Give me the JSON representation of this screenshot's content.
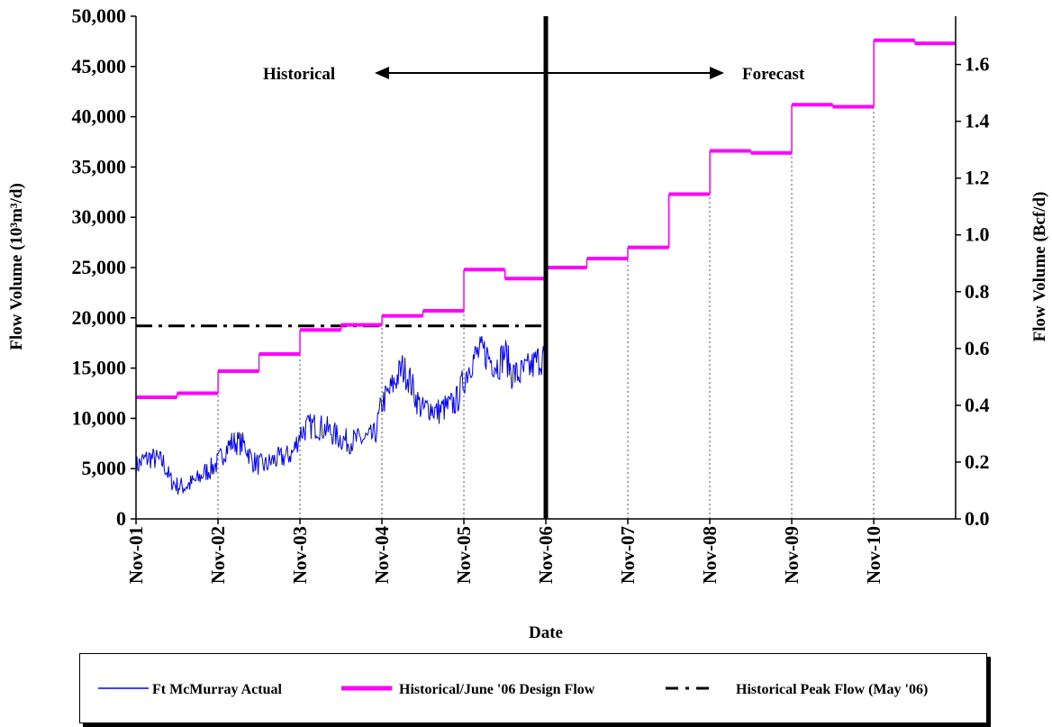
{
  "chart_data": {
    "type": "line",
    "xlabel": "Date",
    "ylabel_left": "Flow Volume (10³m³/d)",
    "ylabel_right": "Flow Volume (Bcf/d)",
    "y_left_range": [
      0,
      50000
    ],
    "y_left_ticks": [
      "0",
      "5,000",
      "10,000",
      "15,000",
      "20,000",
      "25,000",
      "30,000",
      "35,000",
      "40,000",
      "45,000",
      "50,000"
    ],
    "y_right_range": [
      0.0,
      1.77
    ],
    "y_right_ticks": [
      "0.0",
      "0.2",
      "0.4",
      "0.6",
      "0.8",
      "1.0",
      "1.2",
      "1.4",
      "1.6"
    ],
    "x_range_years": [
      2001.833,
      2011.833
    ],
    "x_tick_labels": [
      "Nov-01",
      "Nov-02",
      "Nov-03",
      "Nov-04",
      "Nov-05",
      "Nov-06",
      "Nov-07",
      "Nov-08",
      "Nov-09",
      "Nov-10"
    ],
    "annotations": {
      "historical": "Historical",
      "forecast": "Forecast",
      "divider_date": "Nov-06"
    },
    "legend_labels": {
      "actual": "Ft McMurray Actual",
      "design": "Historical/June '06 Design Flow",
      "peak": "Historical Peak Flow (May '06)"
    },
    "colors": {
      "actual": "#0000ff",
      "design": "#ff00ff",
      "peak": "#000000",
      "divider": "#000000"
    },
    "series": {
      "design_flow": [
        {
          "start": "Nov-01",
          "end": "May-02",
          "value": 12100
        },
        {
          "start": "May-02",
          "end": "Nov-02",
          "value": 12500
        },
        {
          "start": "Nov-02",
          "end": "May-03",
          "value": 14700
        },
        {
          "start": "May-03",
          "end": "Nov-03",
          "value": 16400
        },
        {
          "start": "Nov-03",
          "end": "May-04",
          "value": 18800
        },
        {
          "start": "May-04",
          "end": "Nov-04",
          "value": 19300
        },
        {
          "start": "Nov-04",
          "end": "May-05",
          "value": 20200
        },
        {
          "start": "May-05",
          "end": "Nov-05",
          "value": 20700
        },
        {
          "start": "Nov-05",
          "end": "May-06",
          "value": 24800
        },
        {
          "start": "May-06",
          "end": "Nov-06",
          "value": 23900
        },
        {
          "start": "Nov-06",
          "end": "May-07",
          "value": 25000
        },
        {
          "start": "May-07",
          "end": "Nov-07",
          "value": 25900
        },
        {
          "start": "Nov-07",
          "end": "May-08",
          "value": 27000
        },
        {
          "start": "May-08",
          "end": "Nov-08",
          "value": 32300
        },
        {
          "start": "Nov-08",
          "end": "May-09",
          "value": 36600
        },
        {
          "start": "May-09",
          "end": "Nov-09",
          "value": 36400
        },
        {
          "start": "Nov-09",
          "end": "May-10",
          "value": 41200
        },
        {
          "start": "May-10",
          "end": "Nov-10",
          "value": 41000
        },
        {
          "start": "Nov-10",
          "end": "May-11",
          "value": 47600
        },
        {
          "start": "May-11",
          "end": "Nov-11",
          "value": 47300
        }
      ],
      "peak_flow": {
        "start": "Nov-01",
        "end": "Nov-06",
        "value": 19200
      },
      "actual_monthly": [
        [
          "Nov-01",
          5200
        ],
        [
          "Dec-01",
          5800
        ],
        [
          "Jan-02",
          6100
        ],
        [
          "Feb-02",
          5900
        ],
        [
          "Mar-02",
          5600
        ],
        [
          "Apr-02",
          3900
        ],
        [
          "May-02",
          3300
        ],
        [
          "Jun-02",
          3200
        ],
        [
          "Jul-02",
          3500
        ],
        [
          "Aug-02",
          3900
        ],
        [
          "Sep-02",
          4600
        ],
        [
          "Oct-02",
          5000
        ],
        [
          "Nov-02",
          5600
        ],
        [
          "Dec-02",
          6800
        ],
        [
          "Jan-03",
          7600
        ],
        [
          "Feb-03",
          7600
        ],
        [
          "Mar-03",
          7300
        ],
        [
          "Apr-03",
          5800
        ],
        [
          "May-03",
          5400
        ],
        [
          "Jun-03",
          5300
        ],
        [
          "Jul-03",
          5800
        ],
        [
          "Aug-03",
          6000
        ],
        [
          "Sep-03",
          6200
        ],
        [
          "Oct-03",
          6600
        ],
        [
          "Nov-03",
          8500
        ],
        [
          "Dec-03",
          9100
        ],
        [
          "Jan-04",
          9300
        ],
        [
          "Feb-04",
          9100
        ],
        [
          "Mar-04",
          8900
        ],
        [
          "Apr-04",
          8400
        ],
        [
          "May-04",
          8000
        ],
        [
          "Jun-04",
          7700
        ],
        [
          "Jul-04",
          7800
        ],
        [
          "Aug-04",
          7900
        ],
        [
          "Sep-04",
          8000
        ],
        [
          "Oct-04",
          8300
        ],
        [
          "Nov-04",
          11500
        ],
        [
          "Dec-04",
          12500
        ],
        [
          "Jan-05",
          13800
        ],
        [
          "Feb-05",
          15000
        ],
        [
          "Mar-05",
          14000
        ],
        [
          "Apr-05",
          12000
        ],
        [
          "May-05",
          10800
        ],
        [
          "Jun-05",
          11200
        ],
        [
          "Jul-05",
          10600
        ],
        [
          "Aug-05",
          11000
        ],
        [
          "Sep-05",
          11200
        ],
        [
          "Oct-05",
          11800
        ],
        [
          "Nov-05",
          13800
        ],
        [
          "Dec-05",
          15600
        ],
        [
          "Jan-06",
          16400
        ],
        [
          "Feb-06",
          16600
        ],
        [
          "Mar-06",
          15800
        ],
        [
          "Apr-06",
          15300
        ],
        [
          "May-06",
          16600
        ],
        [
          "Jun-06",
          14500
        ],
        [
          "Jul-06",
          14300
        ],
        [
          "Aug-06",
          14700
        ],
        [
          "Sep-06",
          15200
        ],
        [
          "Oct-06",
          15900
        ],
        [
          "Nov-06",
          16200
        ]
      ]
    }
  }
}
